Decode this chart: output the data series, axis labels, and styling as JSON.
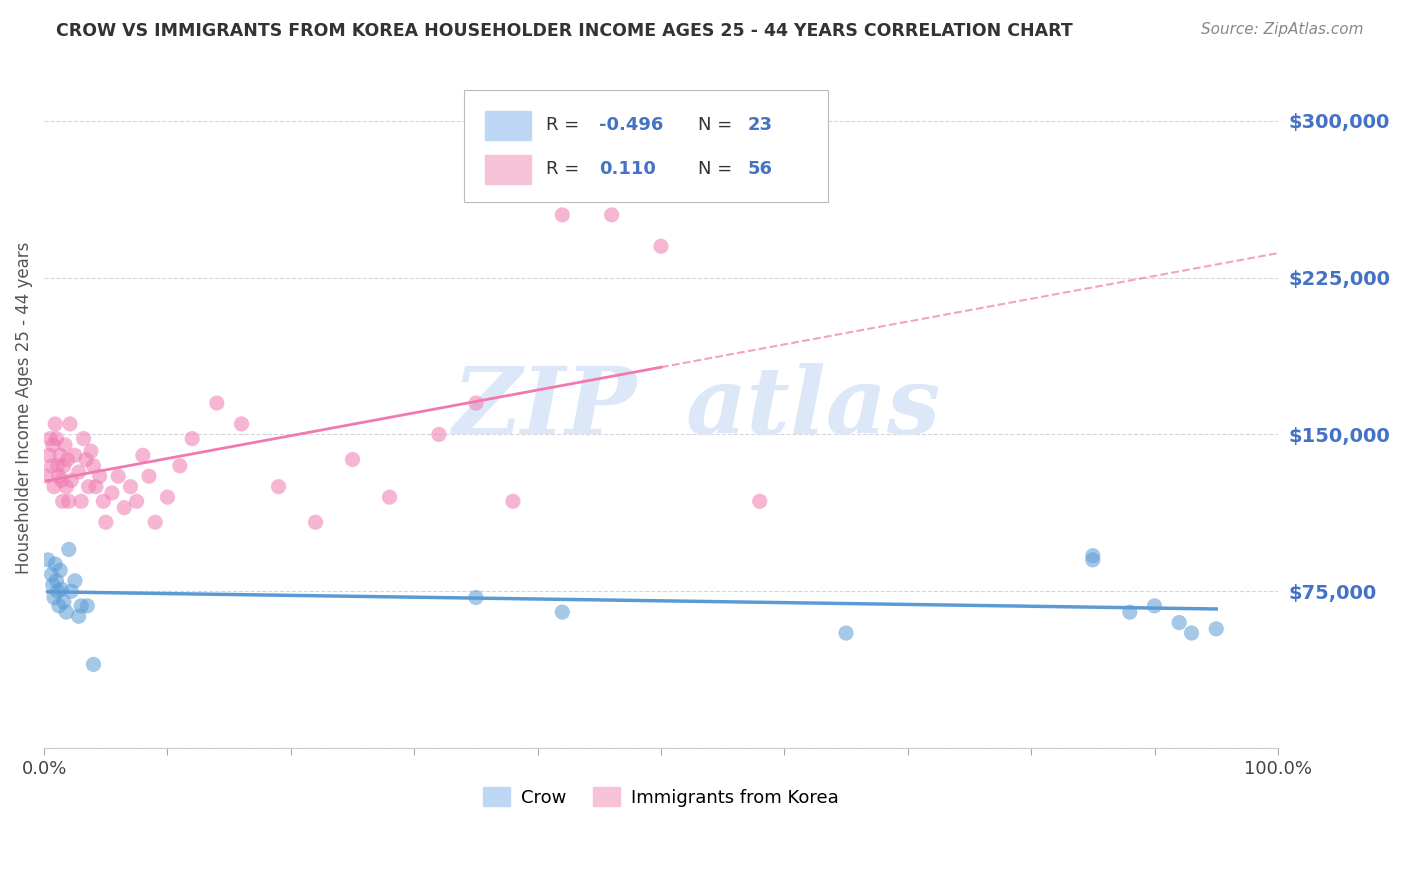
{
  "title": "CROW VS IMMIGRANTS FROM KOREA HOUSEHOLDER INCOME AGES 25 - 44 YEARS CORRELATION CHART",
  "source": "Source: ZipAtlas.com",
  "ylabel": "Householder Income Ages 25 - 44 years",
  "xlim": [
    0.0,
    1.0
  ],
  "ylim": [
    0,
    325000
  ],
  "yticks": [
    0,
    75000,
    150000,
    225000,
    300000
  ],
  "crow_color": "#5b9bd5",
  "korea_color": "#f07ab0",
  "crow_patch_color": "#bdd7f5",
  "korea_patch_color": "#f5c2d8",
  "background_color": "#ffffff",
  "grid_color": "#cccccc",
  "watermark_zip": "ZIP",
  "watermark_atlas": "atlas",
  "crow_scatter_x": [
    0.003,
    0.006,
    0.007,
    0.008,
    0.009,
    0.01,
    0.011,
    0.012,
    0.013,
    0.014,
    0.016,
    0.018,
    0.02,
    0.022,
    0.025,
    0.028,
    0.03,
    0.035,
    0.04,
    0.35,
    0.42,
    0.65,
    0.85
  ],
  "crow_scatter_y": [
    90000,
    83000,
    78000,
    72000,
    88000,
    80000,
    75000,
    68000,
    85000,
    76000,
    70000,
    65000,
    95000,
    75000,
    80000,
    63000,
    68000,
    68000,
    40000,
    72000,
    65000,
    55000,
    90000
  ],
  "korea_scatter_x": [
    0.002,
    0.004,
    0.005,
    0.006,
    0.007,
    0.008,
    0.009,
    0.01,
    0.011,
    0.012,
    0.013,
    0.014,
    0.015,
    0.016,
    0.017,
    0.018,
    0.019,
    0.02,
    0.021,
    0.022,
    0.025,
    0.028,
    0.03,
    0.032,
    0.034,
    0.036,
    0.038,
    0.04,
    0.042,
    0.045,
    0.048,
    0.05,
    0.055,
    0.06,
    0.065,
    0.07,
    0.075,
    0.08,
    0.085,
    0.09,
    0.1,
    0.11,
    0.12,
    0.14,
    0.16,
    0.19,
    0.22,
    0.25,
    0.28,
    0.32,
    0.35,
    0.38,
    0.42,
    0.46,
    0.5,
    0.58
  ],
  "korea_scatter_y": [
    130000,
    140000,
    148000,
    135000,
    145000,
    125000,
    155000,
    148000,
    135000,
    130000,
    140000,
    128000,
    118000,
    135000,
    145000,
    125000,
    138000,
    118000,
    155000,
    128000,
    140000,
    132000,
    118000,
    148000,
    138000,
    125000,
    142000,
    135000,
    125000,
    130000,
    118000,
    108000,
    122000,
    130000,
    115000,
    125000,
    118000,
    140000,
    130000,
    108000,
    120000,
    135000,
    148000,
    165000,
    155000,
    125000,
    108000,
    138000,
    120000,
    150000,
    165000,
    118000,
    255000,
    255000,
    240000,
    118000
  ],
  "crow_extra_x": [
    0.85,
    0.88,
    0.9,
    0.92,
    0.93,
    0.95
  ],
  "crow_extra_y": [
    92000,
    65000,
    68000,
    60000,
    55000,
    57000
  ]
}
